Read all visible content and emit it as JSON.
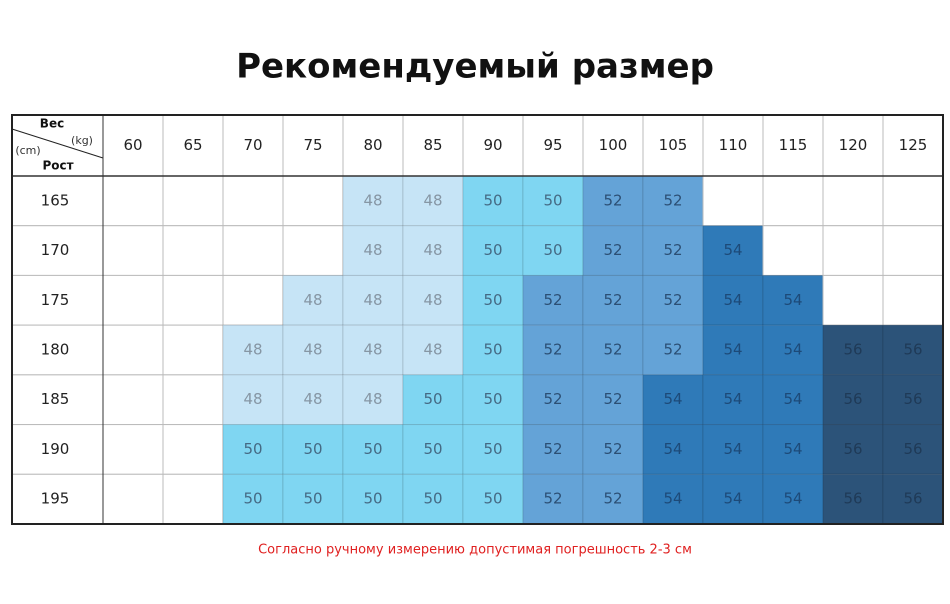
{
  "title": "Рекомендуемый размер",
  "header": {
    "weight_label": "Вес",
    "weight_unit": "(kg)",
    "height_unit": "(cm)",
    "height_label": "Рост"
  },
  "table": {
    "weights": [
      60,
      65,
      70,
      75,
      80,
      85,
      90,
      95,
      100,
      105,
      110,
      115,
      120,
      125
    ],
    "rows": [
      {
        "height": 165,
        "sizes": [
          null,
          null,
          null,
          null,
          48,
          48,
          50,
          50,
          52,
          52,
          null,
          null,
          null,
          null
        ]
      },
      {
        "height": 170,
        "sizes": [
          null,
          null,
          null,
          null,
          48,
          48,
          50,
          50,
          52,
          52,
          54,
          null,
          null,
          null
        ]
      },
      {
        "height": 175,
        "sizes": [
          null,
          null,
          null,
          48,
          48,
          48,
          50,
          52,
          52,
          52,
          54,
          54,
          null,
          null
        ]
      },
      {
        "height": 180,
        "sizes": [
          null,
          null,
          48,
          48,
          48,
          48,
          50,
          52,
          52,
          52,
          54,
          54,
          56,
          56
        ]
      },
      {
        "height": 185,
        "sizes": [
          null,
          null,
          48,
          48,
          48,
          50,
          50,
          52,
          52,
          54,
          54,
          54,
          56,
          56
        ]
      },
      {
        "height": 190,
        "sizes": [
          null,
          null,
          50,
          50,
          50,
          50,
          50,
          52,
          52,
          54,
          54,
          54,
          56,
          56
        ]
      },
      {
        "height": 195,
        "sizes": [
          null,
          null,
          50,
          50,
          50,
          50,
          50,
          52,
          52,
          54,
          54,
          54,
          56,
          56
        ]
      }
    ],
    "palette": [
      {
        "fill": "#c6e4f6",
        "text": "#8696a4"
      },
      {
        "fill": "#7fd6f2",
        "text": "#456a84"
      },
      {
        "fill": "#64a3d7",
        "text": "#2c4f74"
      },
      {
        "fill": "#2f7ab8",
        "text": "#1d4a78"
      },
      {
        "fill": "#2c5379",
        "text": "#1f3a57"
      }
    ]
  },
  "footnote": "Согласно ручному измерению допустимая погрешность 2-3 см"
}
